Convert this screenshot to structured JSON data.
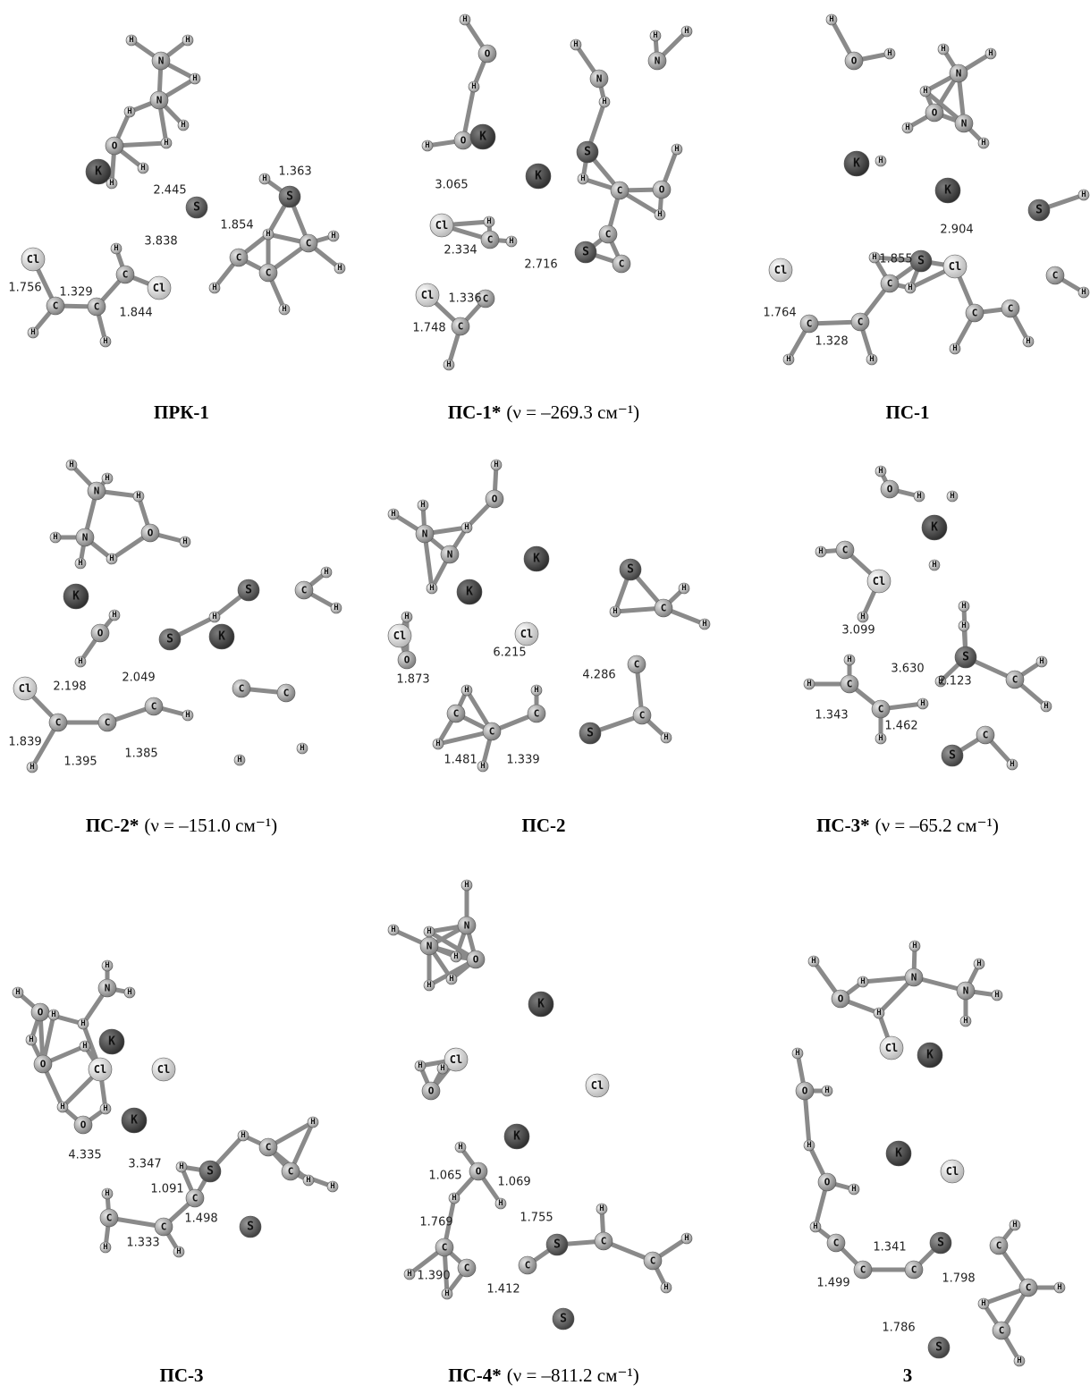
{
  "panels": [
    {
      "label": "ПРК-1",
      "atoms": [
        "N",
        "H",
        "H",
        "H",
        "N",
        "H",
        "H",
        "O",
        "H",
        "H",
        "K",
        "H",
        "S",
        "H",
        "S",
        "C",
        "H",
        "C",
        "H",
        "H",
        "C",
        "H",
        "H",
        "C",
        "H",
        "Cl",
        "C",
        "H",
        "C",
        "Cl",
        "H"
      ],
      "distances": [
        "2.445",
        "1.363",
        "1.854",
        "3.838",
        "1.756",
        "1.329",
        "1.844"
      ]
    },
    {
      "label": "ПС-1*",
      "freq": "(ν = –269.3 см⁻¹)",
      "atoms": [
        "H",
        "O",
        "H",
        "O",
        "H",
        "K",
        "Cl",
        "C",
        "H",
        "H",
        "C",
        "Cl",
        "C",
        "H",
        "S",
        "C",
        "C",
        "S",
        "H",
        "O",
        "H",
        "H",
        "K",
        "N",
        "H",
        "H",
        "N",
        "H",
        "H",
        "C"
      ],
      "distances": [
        "3.065",
        "2.334",
        "2.716",
        "1.336",
        "1.748"
      ]
    },
    {
      "label": "ПС-1",
      "atoms": [
        "H",
        "O",
        "H",
        "N",
        "H",
        "H",
        "O",
        "H",
        "H",
        "N",
        "H",
        "K",
        "H",
        "K",
        "Cl",
        "S",
        "C",
        "H",
        "H",
        "C",
        "H",
        "C",
        "H",
        "Cl",
        "C",
        "H",
        "C",
        "H",
        "C",
        "H",
        "S",
        "H"
      ],
      "distances": [
        "2.904",
        "1.855",
        "1.764",
        "1.328"
      ]
    },
    {
      "label": "ПС-2*",
      "freq": "(ν = –151.0 см⁻¹)",
      "atoms": [
        "N",
        "H",
        "H",
        "N",
        "H",
        "H",
        "H",
        "O",
        "H",
        "H",
        "K",
        "O",
        "H",
        "H",
        "S",
        "H",
        "C",
        "H",
        "H",
        "C",
        "C",
        "H",
        "S",
        "C",
        "H",
        "C",
        "C",
        "Cl",
        "H",
        "K",
        "H"
      ],
      "distances": [
        "2.198",
        "2.049",
        "1.839",
        "1.395",
        "1.385"
      ]
    },
    {
      "label": "ПС-2",
      "atoms": [
        "H",
        "O",
        "N",
        "H",
        "H",
        "N",
        "H",
        "H",
        "H",
        "O",
        "K",
        "K",
        "Cl",
        "S",
        "H",
        "C",
        "H",
        "H",
        "C",
        "C",
        "H",
        "S",
        "C",
        "H",
        "C",
        "H",
        "C",
        "H",
        "H",
        "Cl"
      ],
      "distances": [
        "6.215",
        "4.286",
        "1.873",
        "1.481",
        "1.339"
      ]
    },
    {
      "label": "ПС-3*",
      "freq": "(ν = –65.2 см⁻¹)",
      "atoms": [
        "H",
        "O",
        "H",
        "H",
        "C",
        "Cl",
        "H",
        "K",
        "H",
        "H",
        "H",
        "H",
        "S",
        "C",
        "H",
        "H",
        "C",
        "H",
        "H",
        "H",
        "S",
        "C",
        "H",
        "C",
        "H",
        "H"
      ],
      "distances": [
        "3.099",
        "3.630",
        "2.123",
        "1.343",
        "1.462"
      ]
    },
    {
      "label": "ПС-3",
      "atoms": [
        "H",
        "O",
        "H",
        "H",
        "N",
        "H",
        "H",
        "H",
        "K",
        "H",
        "O",
        "H",
        "O",
        "H",
        "Cl",
        "Cl",
        "K",
        "H",
        "S",
        "C",
        "H",
        "C",
        "H",
        "C",
        "H",
        "H",
        "S",
        "C",
        "H",
        "C",
        "H",
        "H"
      ],
      "distances": [
        "4.335",
        "3.347",
        "1.091",
        "1.498",
        "1.333"
      ]
    },
    {
      "label": "ПС-4*",
      "freq": "(ν = –811.2 см⁻¹)",
      "atoms": [
        "H",
        "N",
        "N",
        "H",
        "H",
        "H",
        "H",
        "O",
        "H",
        "K",
        "Cl",
        "H",
        "O",
        "H",
        "Cl",
        "K",
        "H",
        "O",
        "H",
        "H",
        "C",
        "S",
        "C",
        "H",
        "C",
        "H",
        "H",
        "S",
        "C",
        "H",
        "C",
        "H"
      ],
      "distances": [
        "1.065",
        "1.069",
        "1.769",
        "1.755",
        "1.390",
        "1.412"
      ]
    },
    {
      "label": "3",
      "atoms": [
        "H",
        "O",
        "H",
        "N",
        "H",
        "H",
        "N",
        "H",
        "H",
        "H",
        "H",
        "O",
        "H",
        "Cl",
        "K",
        "H",
        "O",
        "H",
        "K",
        "Cl",
        "C",
        "H",
        "C",
        "C",
        "S",
        "C",
        "H",
        "C",
        "H",
        "C",
        "H",
        "S",
        "H"
      ],
      "distances": [
        "1.499",
        "1.341",
        "1.798",
        "1.786"
      ]
    }
  ]
}
